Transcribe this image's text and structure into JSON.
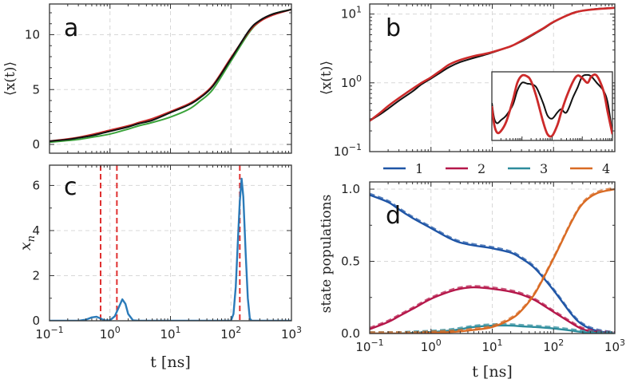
{
  "colors": {
    "black": "#111111",
    "red": "#cc2a2a",
    "green": "#3aa33a",
    "blue": "#2b7bb9",
    "s1": "#1f55a6",
    "s2": "#b5174a",
    "s3": "#2d8c9c",
    "s4": "#d96b24",
    "vline": "#e03030",
    "grid": "#d8d8d8"
  },
  "chart_data": [
    {
      "panel": "a",
      "type": "line",
      "xscale": "log",
      "xlim": [
        0.1,
        1000
      ],
      "ylim": [
        -0.8,
        12.8
      ],
      "yticks": [
        0,
        5,
        10
      ],
      "ylabel": "⟨x(t)⟩",
      "xlabel": "",
      "series": [
        {
          "name": "black",
          "x": [
            0.1,
            0.2,
            0.3,
            0.5,
            1,
            2,
            3,
            5,
            10,
            20,
            30,
            50,
            100,
            200,
            300,
            500,
            1000
          ],
          "values": [
            0.3,
            0.45,
            0.6,
            0.8,
            1.2,
            1.6,
            1.9,
            2.2,
            2.9,
            3.6,
            4.2,
            5.3,
            7.8,
            10.4,
            11.3,
            11.9,
            12.3
          ]
        },
        {
          "name": "red",
          "x": [
            0.1,
            0.2,
            0.3,
            0.5,
            1,
            2,
            3,
            5,
            10,
            20,
            30,
            50,
            100,
            200,
            300,
            500,
            1000
          ],
          "values": [
            0.3,
            0.5,
            0.65,
            0.9,
            1.3,
            1.7,
            2.0,
            2.35,
            3.0,
            3.7,
            4.3,
            5.4,
            7.9,
            10.3,
            11.2,
            11.8,
            12.3
          ]
        },
        {
          "name": "green",
          "x": [
            0.1,
            0.2,
            0.3,
            0.5,
            1,
            2,
            3,
            5,
            10,
            20,
            30,
            50,
            100,
            200,
            300,
            500,
            1000
          ],
          "values": [
            0.2,
            0.35,
            0.45,
            0.65,
            0.95,
            1.4,
            1.7,
            2.0,
            2.5,
            3.2,
            3.9,
            5.0,
            7.6,
            10.2,
            11.2,
            11.9,
            12.3
          ]
        }
      ]
    },
    {
      "panel": "b",
      "type": "line",
      "xscale": "log",
      "yscale": "log",
      "xlim": [
        0.1,
        1000
      ],
      "ylim": [
        0.1,
        14
      ],
      "yticks": [
        0.1,
        1,
        10
      ],
      "yticklabels": [
        "10",
        "10",
        "10"
      ],
      "ytickexps": [
        "−1",
        "0",
        "1"
      ],
      "ylabel": "⟨x(t)⟩",
      "series": [
        {
          "name": "black",
          "x": [
            0.1,
            0.15,
            0.2,
            0.3,
            0.5,
            0.7,
            1,
            1.5,
            2,
            3,
            5,
            7,
            10,
            20,
            30,
            50,
            70,
            100,
            200,
            300,
            500,
            1000
          ],
          "values": [
            0.28,
            0.35,
            0.42,
            0.55,
            0.75,
            0.95,
            1.15,
            1.45,
            1.7,
            2.0,
            2.3,
            2.5,
            2.75,
            3.4,
            4.0,
            5.2,
            6.2,
            7.6,
            10.3,
            11.2,
            11.9,
            12.3
          ]
        },
        {
          "name": "red",
          "x": [
            0.1,
            0.15,
            0.2,
            0.3,
            0.5,
            0.7,
            1,
            1.5,
            2,
            3,
            5,
            7,
            10,
            20,
            30,
            50,
            70,
            100,
            200,
            300,
            500,
            1000
          ],
          "values": [
            0.28,
            0.37,
            0.46,
            0.6,
            0.82,
            1.0,
            1.2,
            1.55,
            1.85,
            2.15,
            2.45,
            2.6,
            2.8,
            3.4,
            4.1,
            5.3,
            6.3,
            7.7,
            10.2,
            11.2,
            11.8,
            12.3
          ]
        }
      ],
      "inset": {
        "xscale": "log",
        "xlim": [
          0.1,
          1000
        ],
        "ylim": [
          -1.1,
          1.1
        ],
        "series": [
          {
            "name": "black",
            "x": [
              0.1,
              0.12,
              0.15,
              0.2,
              0.3,
              0.5,
              0.7,
              1,
              1.5,
              2,
              3,
              5,
              7,
              10,
              15,
              20,
              30,
              50,
              70,
              100,
              150,
              200,
              300,
              500,
              700,
              1000
            ],
            "values": [
              0.1,
              -0.4,
              -0.55,
              -0.45,
              -0.3,
              0.05,
              0.5,
              0.75,
              0.72,
              0.7,
              0.6,
              0.1,
              -0.3,
              -0.4,
              -0.2,
              -0.1,
              -0.2,
              0.3,
              0.6,
              0.95,
              1.0,
              0.95,
              0.75,
              0.5,
              0.1,
              -0.9
            ]
          },
          {
            "name": "red",
            "x": [
              0.1,
              0.12,
              0.15,
              0.2,
              0.3,
              0.5,
              0.7,
              1,
              1.5,
              2,
              3,
              5,
              7,
              10,
              15,
              20,
              30,
              50,
              70,
              100,
              150,
              200,
              300,
              500,
              700,
              1000
            ],
            "values": [
              0.0,
              -0.6,
              -0.85,
              -0.8,
              -0.5,
              0.2,
              0.75,
              0.98,
              0.95,
              0.8,
              0.3,
              -0.5,
              -0.9,
              -0.95,
              -0.6,
              -0.2,
              0.3,
              0.8,
              0.98,
              0.9,
              0.75,
              0.95,
              0.98,
              0.5,
              -0.2,
              -0.9
            ]
          }
        ]
      }
    },
    {
      "panel": "c",
      "type": "line",
      "xscale": "log",
      "xlim": [
        0.1,
        1000
      ],
      "ylim": [
        0,
        6.9
      ],
      "yticks": [
        0,
        2,
        4,
        6
      ],
      "ylabel": "x_n",
      "xlabel": "t [ns]",
      "vlines": [
        0.7,
        1.3,
        140
      ],
      "series": [
        {
          "name": "blue",
          "x": [
            0.1,
            0.3,
            0.4,
            0.5,
            0.6,
            0.7,
            0.8,
            1.0,
            1.2,
            1.4,
            1.6,
            1.8,
            2.0,
            2.4,
            3,
            10,
            100,
            110,
            120,
            130,
            140,
            150,
            160,
            175,
            190,
            205,
            220,
            1000
          ],
          "values": [
            0,
            0,
            0.05,
            0.15,
            0.18,
            0.1,
            0.02,
            0.02,
            0.2,
            0.6,
            0.95,
            0.75,
            0.3,
            0.02,
            0,
            0,
            0,
            0.3,
            1.5,
            3.5,
            5.3,
            6.3,
            5.5,
            3.0,
            1.0,
            0.1,
            0,
            0
          ]
        }
      ]
    },
    {
      "panel": "d",
      "type": "line",
      "xscale": "log",
      "xlim": [
        0.1,
        1000
      ],
      "ylim": [
        0,
        1.05
      ],
      "yticks": [
        0.0,
        0.5,
        1.0
      ],
      "ylabel": "state populations",
      "xlabel": "t [ns]",
      "legend": [
        "1",
        "2",
        "3",
        "4"
      ],
      "series": [
        {
          "name": "1",
          "x": [
            0.1,
            0.2,
            0.3,
            0.5,
            1,
            2,
            3,
            5,
            10,
            20,
            30,
            50,
            100,
            200,
            300,
            500,
            1000
          ],
          "values": [
            0.96,
            0.91,
            0.86,
            0.8,
            0.73,
            0.66,
            0.63,
            0.61,
            0.59,
            0.56,
            0.52,
            0.45,
            0.3,
            0.13,
            0.06,
            0.02,
            0.0
          ]
        },
        {
          "name": "2",
          "x": [
            0.1,
            0.2,
            0.3,
            0.5,
            1,
            2,
            3,
            5,
            10,
            20,
            30,
            50,
            100,
            200,
            300,
            500,
            1000
          ],
          "values": [
            0.03,
            0.08,
            0.12,
            0.17,
            0.24,
            0.29,
            0.31,
            0.32,
            0.31,
            0.29,
            0.27,
            0.23,
            0.15,
            0.07,
            0.03,
            0.01,
            0.0
          ]
        },
        {
          "name": "3",
          "x": [
            0.1,
            0.2,
            0.3,
            0.5,
            1,
            2,
            3,
            5,
            10,
            20,
            30,
            50,
            100,
            200,
            300,
            500,
            1000
          ],
          "values": [
            0.0,
            0.0,
            0.0,
            0.005,
            0.01,
            0.02,
            0.03,
            0.045,
            0.055,
            0.055,
            0.05,
            0.045,
            0.035,
            0.02,
            0.01,
            0.004,
            0.0
          ]
        },
        {
          "name": "4",
          "x": [
            0.1,
            0.2,
            0.3,
            0.5,
            1,
            2,
            3,
            5,
            10,
            20,
            30,
            50,
            100,
            200,
            300,
            500,
            1000
          ],
          "values": [
            0.0,
            0.0,
            0.0,
            0.0,
            0.005,
            0.01,
            0.015,
            0.025,
            0.045,
            0.1,
            0.16,
            0.28,
            0.52,
            0.78,
            0.9,
            0.97,
            1.0
          ]
        }
      ]
    }
  ],
  "labels": {
    "panel_a": "a",
    "panel_b": "b",
    "panel_c": "c",
    "panel_d": "d",
    "x_axis_label": "t [ns]",
    "ylabel_a": "⟨x(t)⟩",
    "ylabel_b": "⟨x(t)⟩",
    "ylabel_c": "x",
    "ylabel_c_sub": "n",
    "ylabel_d": "state populations",
    "ytick_a": [
      "0",
      "5",
      "10"
    ],
    "ytick_c": [
      "0",
      "2",
      "4",
      "6"
    ],
    "ytick_d": [
      "0.0",
      "0.5",
      "1.0"
    ],
    "xtick_base": "10",
    "xtick_exps": [
      "−1",
      "0",
      "1",
      "2",
      "3"
    ],
    "legend": [
      "1",
      "2",
      "3",
      "4"
    ]
  }
}
